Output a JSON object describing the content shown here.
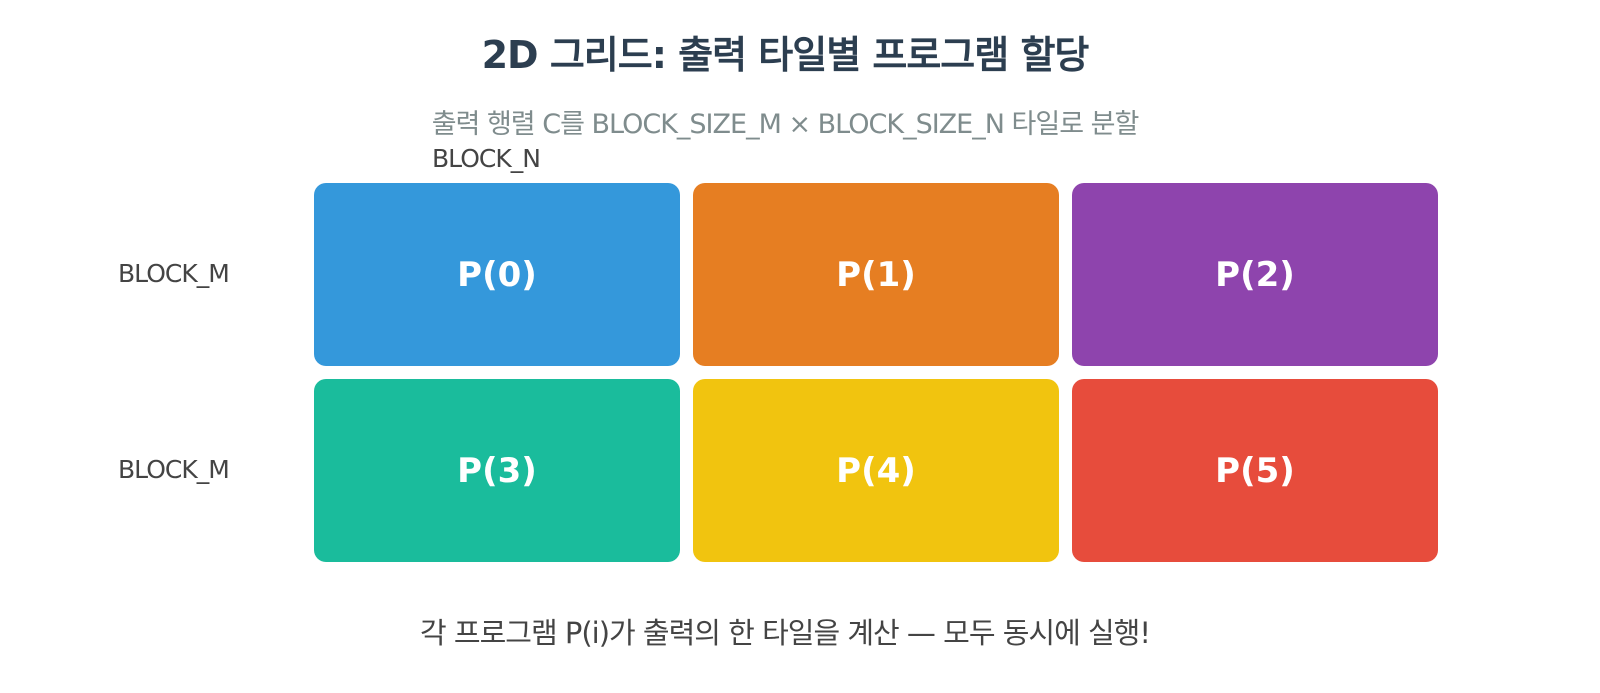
{
  "title": "2D 그리드: 출력 타일별 프로그램 할당",
  "subtitle": "출력 행렬 C를 BLOCK_SIZE_M × BLOCK_SIZE_N 타일로 분할",
  "column_label": "BLOCK_N",
  "row_labels": [
    "BLOCK_M",
    "BLOCK_M"
  ],
  "tiles": [
    {
      "label": "P(0)",
      "color": "#3498db"
    },
    {
      "label": "P(1)",
      "color": "#e67e22"
    },
    {
      "label": "P(2)",
      "color": "#8e44ad"
    },
    {
      "label": "P(3)",
      "color": "#1abc9c"
    },
    {
      "label": "P(4)",
      "color": "#f1c40f"
    },
    {
      "label": "P(5)",
      "color": "#e74c3c"
    }
  ],
  "footer": "각 프로그램 P(i)가 출력의 한 타일을 계산 — 모두 동시에 실행!"
}
